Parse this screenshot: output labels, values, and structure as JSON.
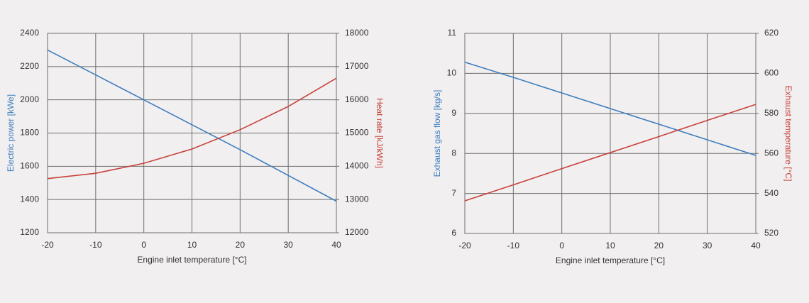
{
  "chart_data": [
    {
      "type": "line",
      "x": [
        -20,
        -10,
        0,
        10,
        20,
        30,
        40
      ],
      "xlim": [
        -20,
        40
      ],
      "xticks": [
        -20,
        -10,
        0,
        10,
        20,
        30,
        40
      ],
      "xlabel": "Engine inlet temperature [°C]",
      "ylabel": "Electric power [kWe]",
      "y2label": "Heat rate [kJ/kWh]",
      "ylim": [
        1200,
        2400
      ],
      "yticks": [
        1200,
        1400,
        1600,
        1800,
        2000,
        2200,
        2400
      ],
      "y2lim": [
        12000,
        18000
      ],
      "y2ticks": [
        12000,
        13000,
        14000,
        15000,
        16000,
        17000,
        18000
      ],
      "grid": true,
      "series": [
        {
          "name": "Electric power",
          "color": "#3d7ebf",
          "values": [
            2300,
            2150,
            2000,
            1850,
            1700,
            1545,
            1390
          ]
        },
        {
          "name": "Heat rate",
          "color": "#c6423b",
          "axis": "y2",
          "values": [
            13630,
            13790,
            14090,
            14520,
            15100,
            15800,
            16650
          ]
        }
      ]
    },
    {
      "type": "line",
      "x": [
        -20,
        -10,
        0,
        10,
        20,
        30,
        40
      ],
      "xlim": [
        -20,
        40
      ],
      "xticks": [
        -20,
        -10,
        0,
        10,
        20,
        30,
        40
      ],
      "xlabel": "Engine inlet temperature [°C]",
      "ylabel": "Exhaust gas flow [kg/s]",
      "y2label": "Exhaust temperature [°C]",
      "ylim": [
        6,
        11
      ],
      "yticks": [
        6,
        7,
        8,
        9,
        10,
        11
      ],
      "y2lim": [
        520,
        620
      ],
      "y2ticks": [
        520,
        540,
        560,
        580,
        600,
        620
      ],
      "grid": true,
      "series": [
        {
          "name": "Exhaust gas flow",
          "color": "#3d7ebf",
          "values": [
            10.28,
            9.9,
            9.51,
            9.12,
            8.73,
            8.34,
            7.95
          ]
        },
        {
          "name": "Exhaust temperature",
          "color": "#c6423b",
          "axis": "y2",
          "values": [
            536.3,
            544.3,
            552.4,
            560.4,
            568.4,
            576.5,
            584.5
          ]
        }
      ]
    }
  ]
}
